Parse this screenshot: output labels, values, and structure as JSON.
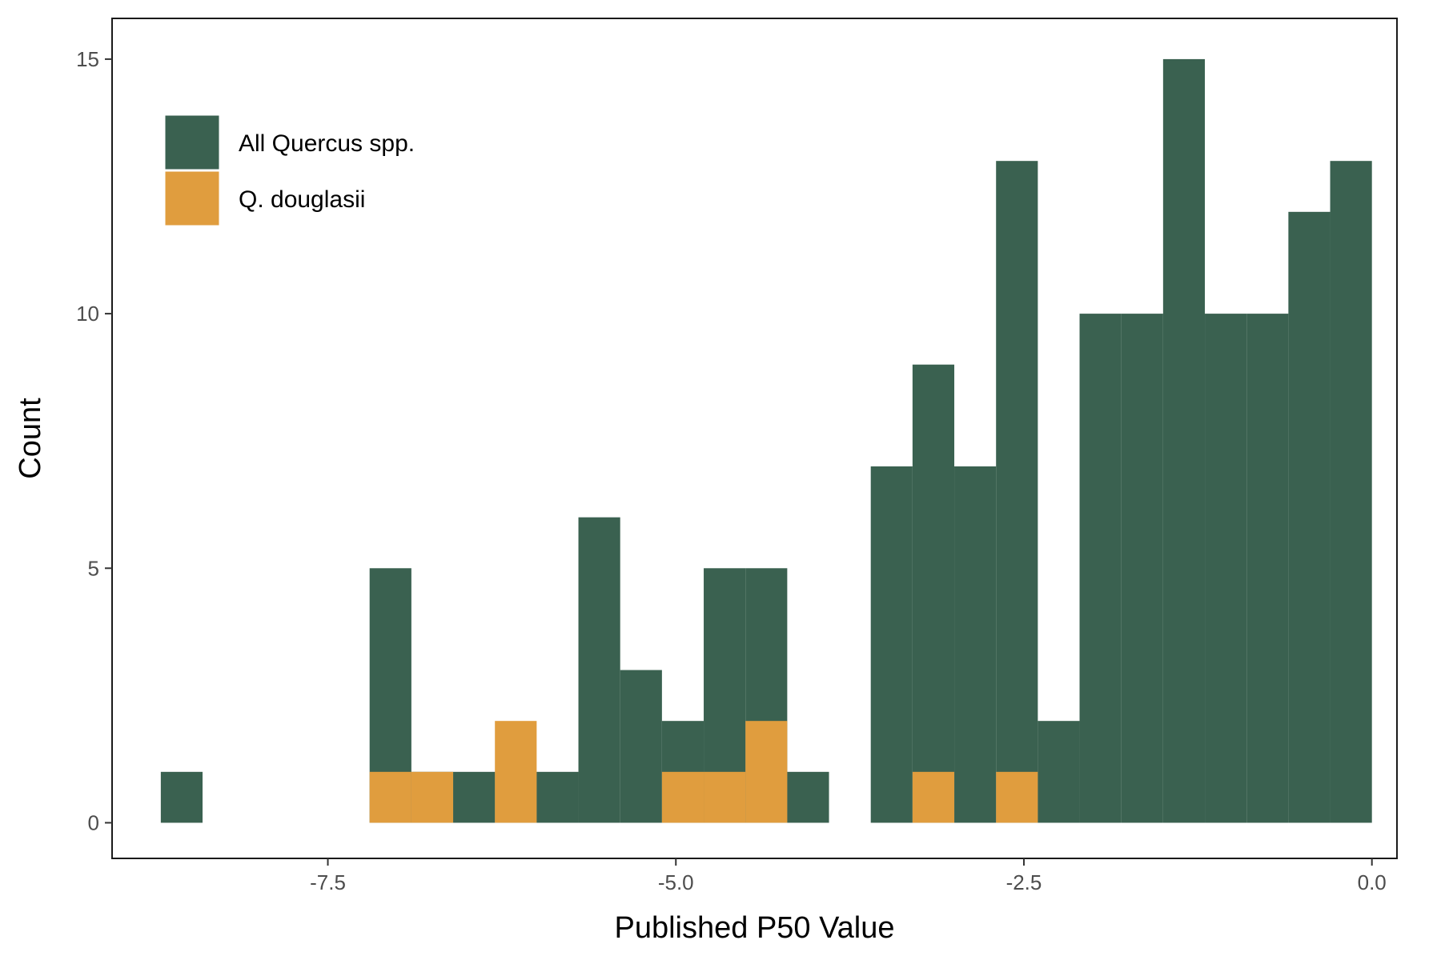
{
  "chart_data": {
    "type": "bar",
    "subtype": "histogram",
    "title": "",
    "xlabel": "Published P50 Value",
    "ylabel": "Count",
    "xlim": [
      -9.05,
      0.18
    ],
    "ylim": [
      -0.7,
      15.8
    ],
    "x_ticks": [
      {
        "value": -7.5,
        "label": "-7.5"
      },
      {
        "value": -5.0,
        "label": "-5.0"
      },
      {
        "value": -2.5,
        "label": "-2.5"
      },
      {
        "value": 0.0,
        "label": "0.0"
      }
    ],
    "y_ticks": [
      {
        "value": 0,
        "label": "0"
      },
      {
        "value": 5,
        "label": "5"
      },
      {
        "value": 10,
        "label": "10"
      },
      {
        "value": 15,
        "label": "15"
      }
    ],
    "grid": false,
    "legend_position": "top-left",
    "series": [
      {
        "name": "All Quercus spp.",
        "color": "#3a6150",
        "bins": [
          {
            "x0": -8.7,
            "x1": -8.4,
            "count": 1
          },
          {
            "x0": -7.2,
            "x1": -6.9,
            "count": 5
          },
          {
            "x0": -6.9,
            "x1": -6.6,
            "count": 1
          },
          {
            "x0": -6.6,
            "x1": -6.3,
            "count": 1
          },
          {
            "x0": -6.3,
            "x1": -6.0,
            "count": 1
          },
          {
            "x0": -6.0,
            "x1": -5.7,
            "count": 1
          },
          {
            "x0": -5.7,
            "x1": -5.4,
            "count": 6
          },
          {
            "x0": -5.4,
            "x1": -5.1,
            "count": 3
          },
          {
            "x0": -5.1,
            "x1": -4.8,
            "count": 2
          },
          {
            "x0": -4.8,
            "x1": -4.5,
            "count": 5
          },
          {
            "x0": -4.5,
            "x1": -4.2,
            "count": 5
          },
          {
            "x0": -4.2,
            "x1": -3.9,
            "count": 1
          },
          {
            "x0": -3.6,
            "x1": -3.3,
            "count": 7
          },
          {
            "x0": -3.3,
            "x1": -3.0,
            "count": 9
          },
          {
            "x0": -3.0,
            "x1": -2.7,
            "count": 7
          },
          {
            "x0": -2.7,
            "x1": -2.4,
            "count": 13
          },
          {
            "x0": -2.4,
            "x1": -2.1,
            "count": 2
          },
          {
            "x0": -2.1,
            "x1": -1.8,
            "count": 10
          },
          {
            "x0": -1.8,
            "x1": -1.5,
            "count": 10
          },
          {
            "x0": -1.5,
            "x1": -1.2,
            "count": 15
          },
          {
            "x0": -1.2,
            "x1": -0.9,
            "count": 10
          },
          {
            "x0": -0.9,
            "x1": -0.6,
            "count": 10
          },
          {
            "x0": -0.6,
            "x1": -0.3,
            "count": 12
          },
          {
            "x0": -0.3,
            "x1": 0.0,
            "count": 13
          }
        ]
      },
      {
        "name": "Q. douglasii",
        "color": "#e09d3e",
        "bins": [
          {
            "x0": -7.2,
            "x1": -6.9,
            "count": 1
          },
          {
            "x0": -6.9,
            "x1": -6.6,
            "count": 1
          },
          {
            "x0": -6.3,
            "x1": -6.0,
            "count": 2
          },
          {
            "x0": -5.1,
            "x1": -4.8,
            "count": 1
          },
          {
            "x0": -4.8,
            "x1": -4.5,
            "count": 1
          },
          {
            "x0": -4.5,
            "x1": -4.2,
            "count": 2
          },
          {
            "x0": -3.3,
            "x1": -3.0,
            "count": 1
          },
          {
            "x0": -2.7,
            "x1": -2.4,
            "count": 1
          }
        ]
      }
    ]
  }
}
